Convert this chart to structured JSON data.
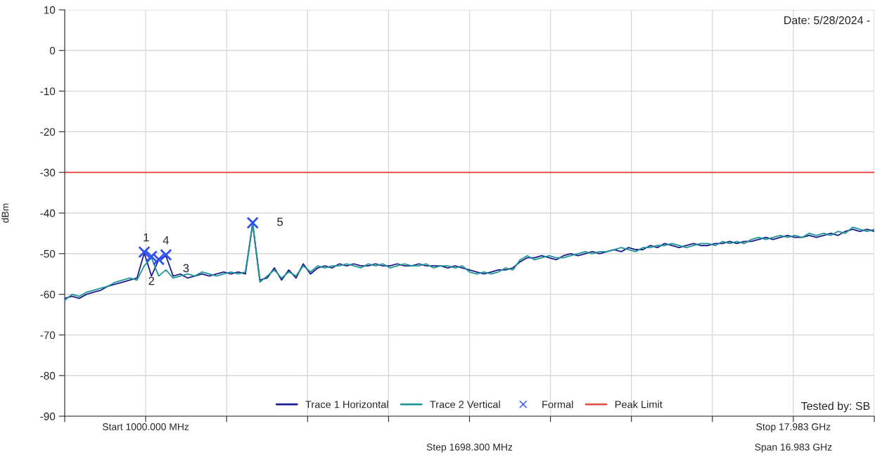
{
  "chart_data": {
    "type": "line",
    "ylabel": "dBm",
    "categories": [
      null,
      null,
      null,
      null,
      null,
      null,
      null,
      null,
      null,
      null,
      null,
      null,
      null,
      null,
      null,
      null,
      null,
      null,
      null,
      null,
      null,
      null,
      null,
      null,
      null,
      null,
      null,
      null,
      null,
      null,
      null,
      null,
      null,
      null,
      null,
      null,
      null,
      null,
      null,
      null,
      null,
      null,
      null,
      null,
      null,
      null,
      null,
      null,
      null,
      null,
      null,
      null,
      null,
      null,
      null,
      null,
      null,
      null,
      null,
      null,
      null,
      null,
      null,
      null,
      null,
      null,
      null,
      null,
      null,
      null,
      null,
      null,
      null,
      null,
      null,
      null,
      null,
      null,
      null,
      null,
      null,
      null,
      null,
      null,
      null,
      null,
      null,
      null,
      null,
      null,
      null,
      null,
      null,
      null,
      null,
      null,
      null,
      null,
      null,
      null,
      null,
      null,
      null,
      null,
      null,
      null,
      null,
      null,
      null,
      null,
      null,
      null,
      null
    ],
    "series": [
      {
        "name": "Trace 1 Horizontal",
        "color": "#1c1c8f",
        "values": [
          -61,
          -60.5,
          -61,
          -60,
          -59.5,
          -59,
          -58,
          -57.5,
          -57,
          -56.5,
          -56,
          -49.8,
          -55.5,
          -51.5,
          -50.5,
          -55.5,
          -55,
          -56,
          -55.5,
          -55,
          -55.5,
          -55,
          -54.5,
          -55,
          -54.5,
          -55,
          -42.5,
          -56.5,
          -56,
          -53.5,
          -56.5,
          -54,
          -56,
          -52.5,
          -55,
          -53.5,
          -53,
          -53.5,
          -52.5,
          -53,
          -52.5,
          -53,
          -53,
          -52.5,
          -53,
          -53,
          -52.5,
          -53,
          -53,
          -52.5,
          -53,
          -53,
          -53,
          -53.5,
          -53,
          -53.5,
          -54,
          -54.5,
          -55,
          -54.5,
          -54,
          -54,
          -53.5,
          -52,
          -51,
          -51,
          -50.5,
          -51,
          -51.5,
          -50.5,
          -50,
          -50.5,
          -50,
          -49.5,
          -50,
          -49.5,
          -49,
          -49.5,
          -48.5,
          -49,
          -49,
          -48,
          -48.5,
          -47.5,
          -48,
          -48.5,
          -48,
          -47.5,
          -48,
          -48,
          -47.5,
          -47.5,
          -47,
          -47.5,
          -47,
          -47,
          -46.5,
          -46,
          -46.5,
          -46,
          -45.5,
          -46,
          -46,
          -45.5,
          -46,
          -45.5,
          -45,
          -45.5,
          -44.5,
          -44,
          -44.5,
          -44,
          -44.5
        ]
      },
      {
        "name": "Trace 2 Vertical",
        "color": "#1e9696",
        "values": [
          -61.5,
          -60,
          -60.5,
          -59.5,
          -59,
          -58.5,
          -58,
          -57,
          -56.5,
          -56,
          -56.5,
          -53,
          -51,
          -55.5,
          -54,
          -56,
          -55.5,
          -55,
          -55.5,
          -54.5,
          -55,
          -55.5,
          -55,
          -54.5,
          -55,
          -54.5,
          -42.8,
          -57,
          -55.5,
          -54,
          -56,
          -54.5,
          -55.5,
          -53,
          -54.5,
          -53,
          -53.5,
          -53,
          -53,
          -52.5,
          -53,
          -53.5,
          -52.5,
          -53,
          -52.5,
          -53.5,
          -53,
          -52.5,
          -53,
          -53,
          -52.5,
          -53.5,
          -53,
          -53,
          -53.5,
          -53,
          -54.5,
          -55,
          -54.5,
          -55,
          -54.5,
          -53.5,
          -54,
          -51.5,
          -50.5,
          -51.5,
          -51,
          -50.5,
          -51,
          -51,
          -50.5,
          -50,
          -49.5,
          -50,
          -49.5,
          -49.5,
          -49,
          -48.5,
          -49,
          -49.5,
          -48.5,
          -48.5,
          -48,
          -48,
          -47.5,
          -48,
          -48.5,
          -48,
          -47.5,
          -47.5,
          -48,
          -47,
          -47.5,
          -47,
          -47.5,
          -46.5,
          -46,
          -46.5,
          -46,
          -45.5,
          -46,
          -45.5,
          -46,
          -45,
          -45.5,
          -45,
          -45.5,
          -44.5,
          -45,
          -43.5,
          -44,
          -44.5,
          -44
        ]
      },
      {
        "name": "Formal",
        "type": "scatter",
        "marker": "cross",
        "color": "#2f4ff0",
        "values": [
          null,
          null,
          null,
          null,
          null,
          null,
          null,
          null,
          null,
          null,
          null,
          -49.6,
          -50.7,
          -51.4,
          -50.3,
          null,
          null,
          null,
          null,
          null,
          null,
          null,
          null,
          null,
          null,
          null,
          -42.4,
          null,
          null,
          null,
          null,
          null,
          null,
          null,
          null,
          null,
          null,
          null,
          null,
          null,
          null,
          null,
          null,
          null,
          null,
          null,
          null,
          null,
          null,
          null,
          null,
          null,
          null,
          null,
          null,
          null,
          null,
          null,
          null,
          null,
          null,
          null,
          null,
          null,
          null,
          null,
          null,
          null,
          null,
          null,
          null,
          null,
          null,
          null,
          null,
          null,
          null,
          null,
          null,
          null,
          null,
          null,
          null,
          null,
          null,
          null,
          null,
          null,
          null,
          null,
          null,
          null,
          null,
          null,
          null,
          null,
          null,
          null,
          null,
          null,
          null,
          null,
          null,
          null,
          null,
          null,
          null,
          null,
          null,
          null,
          null,
          null,
          null
        ]
      }
    ],
    "ref_lines": [
      {
        "axis": "y",
        "value": -30,
        "label": "Peak Limit",
        "color": "#e8504a"
      }
    ],
    "ylim": [
      -90,
      10
    ],
    "yticks": [
      10,
      0,
      -10,
      -20,
      -30,
      -40,
      -50,
      -60,
      -70,
      -80,
      -90
    ],
    "tick_labels": "y",
    "grid": true,
    "legend": "bottom",
    "line_style": "solid",
    "annotations": [
      "Date: 5/28/2024 -",
      "Tested by: SB",
      "Start 1000.000 MHz",
      "Stop 17.983 GHz",
      "Step 1698.300 MHz",
      "Span 16.983 GHz",
      "1",
      "2",
      "3",
      "4",
      "5"
    ]
  }
}
